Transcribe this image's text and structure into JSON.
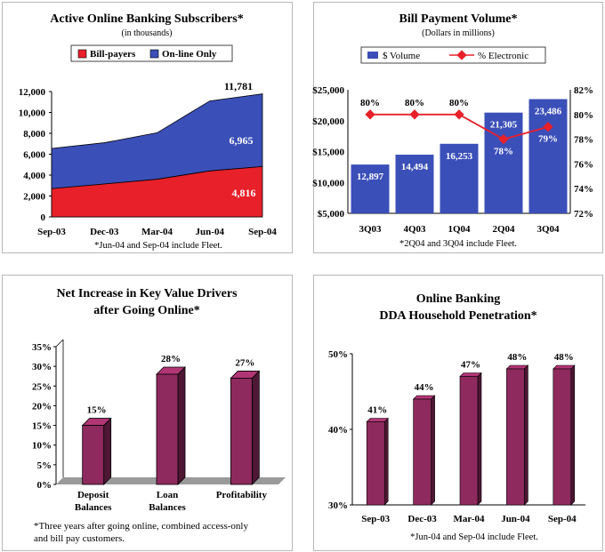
{
  "chart_data": [
    {
      "type": "area",
      "title": "Active Online Banking Subscribers*",
      "subtitle": "(in thousands)",
      "categories": [
        "Sep-03",
        "Dec-03",
        "Mar-04",
        "Jun-04",
        "Sep-04"
      ],
      "series": [
        {
          "name": "Bill-payers",
          "color": "#e8202a",
          "values": [
            2700,
            3150,
            3600,
            4400,
            4816
          ]
        },
        {
          "name": "On-line Only",
          "color": "#3b4fb8",
          "values": [
            3850,
            3950,
            4450,
            6700,
            6965
          ]
        }
      ],
      "yticks": [
        "0",
        "2,000",
        "4,000",
        "6,000",
        "8,000",
        "10,000",
        "12,000"
      ],
      "ylim": [
        0,
        12000
      ],
      "labels": {
        "total": "11,781",
        "online": "6,965",
        "billpayers": "4,816"
      },
      "footnote": "*Jun-04 and Sep-04 include Fleet."
    },
    {
      "type": "bar",
      "title": "Bill Payment Volume*",
      "subtitle": "(Dollars in millions)",
      "categories": [
        "3Q03",
        "4Q03",
        "1Q04",
        "2Q04",
        "3Q04"
      ],
      "series": [
        {
          "name": "$ Volume",
          "color": "#3b4fb8",
          "values": [
            12897,
            14494,
            16253,
            21305,
            23486
          ],
          "value_labels": [
            "12,897",
            "14,494",
            "16,253",
            "21,305",
            "23,486"
          ]
        },
        {
          "name": "% Electronic",
          "color": "#e8202a",
          "values": [
            80,
            80,
            80,
            78,
            79
          ],
          "value_labels": [
            "80%",
            "80%",
            "80%",
            "78%",
            "79%"
          ]
        }
      ],
      "yticks_left": [
        "$5,000",
        "$10,000",
        "$15,000",
        "$20,000",
        "$25,000"
      ],
      "ylim_left": [
        5000,
        25000
      ],
      "yticks_right": [
        "72%",
        "74%",
        "76%",
        "78%",
        "80%",
        "82%"
      ],
      "ylim_right": [
        72,
        82
      ],
      "footnote": "*2Q04 and 3Q04 include Fleet."
    },
    {
      "type": "bar",
      "title_line1": "Net Increase in Key Value Drivers",
      "title_line2": "after Going Online*",
      "categories": [
        {
          "line1": "Deposit",
          "line2": "Balances"
        },
        {
          "line1": "Loan",
          "line2": "Balances"
        },
        {
          "line1": "Profitability",
          "line2": ""
        }
      ],
      "values": [
        15,
        28,
        27
      ],
      "value_labels": [
        "15%",
        "28%",
        "27%"
      ],
      "yticks": [
        "0%",
        "5%",
        "10%",
        "15%",
        "20%",
        "25%",
        "30%",
        "35%"
      ],
      "ylim": [
        0,
        35
      ],
      "color": "#8e2a5e",
      "footnote_line1": "*Three years after going online, combined access-only",
      "footnote_line2": "and bill pay customers."
    },
    {
      "type": "bar",
      "title_line1": "Online Banking",
      "title_line2": "DDA Household Penetration*",
      "categories": [
        "Sep-03",
        "Dec-03",
        "Mar-04",
        "Jun-04",
        "Sep-04"
      ],
      "values": [
        41,
        44,
        47,
        48,
        48
      ],
      "value_labels": [
        "41%",
        "44%",
        "47%",
        "48%",
        "48%"
      ],
      "yticks": [
        "30%",
        "40%",
        "50%"
      ],
      "ylim": [
        30,
        50
      ],
      "color": "#8e2a5e",
      "footnote": "*Jun-04 and Sep-04 include Fleet."
    }
  ]
}
